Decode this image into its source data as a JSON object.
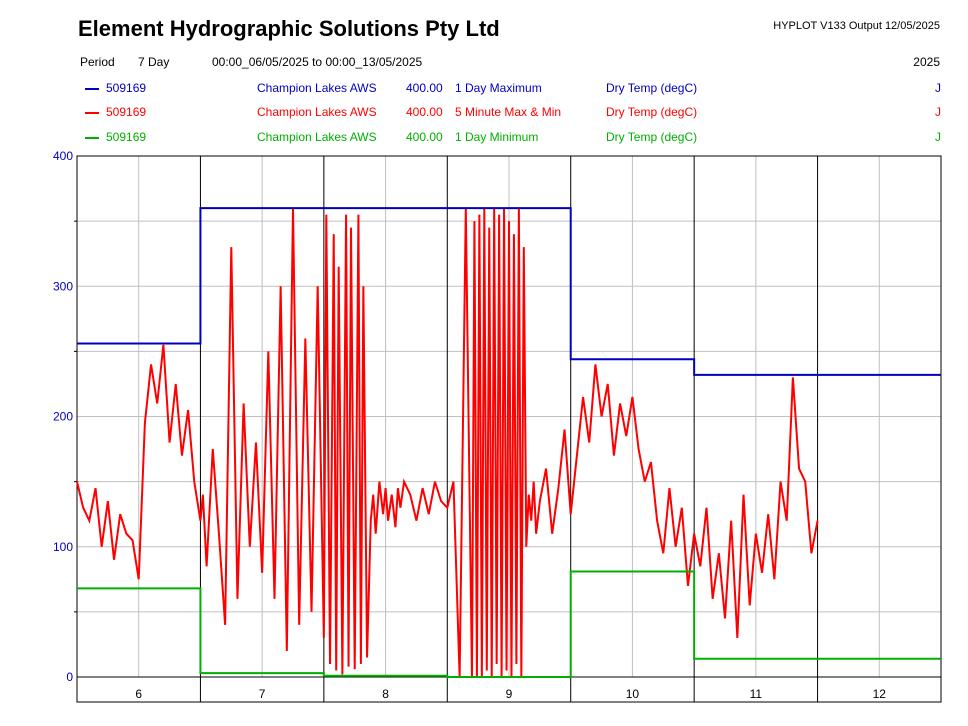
{
  "header": {
    "title": "Element Hydrographic Solutions Pty Ltd",
    "version": "HYPLOT V133  Output 12/05/2025",
    "period_label": "Period",
    "period_value": "7 Day",
    "date_range": "00:00_06/05/2025 to 00:00_13/05/2025",
    "year": "2025"
  },
  "legend": [
    {
      "site": "509169",
      "station": "Champion Lakes AWS",
      "value": "400.00",
      "stat": "1 Day Maximum",
      "variable": "Dry Temp (degC)",
      "flag": "J",
      "color": "#0000c0"
    },
    {
      "site": "509169",
      "station": "Champion Lakes AWS",
      "value": "400.00",
      "stat": "5 Minute Max & Min",
      "variable": "Dry Temp (degC)",
      "flag": "J",
      "color": "#ff0000"
    },
    {
      "site": "509169",
      "station": "Champion Lakes AWS",
      "value": "400.00",
      "stat": "1 Day Minimum",
      "variable": "Dry Temp (degC)",
      "flag": "J",
      "color": "#00b000"
    }
  ],
  "chart_data": {
    "type": "line",
    "ylim": [
      0,
      400
    ],
    "yticks": [
      0,
      100,
      200,
      300,
      400
    ],
    "xlim": [
      5.5,
      12.5
    ],
    "xticks": [
      6,
      7,
      8,
      9,
      10,
      11,
      12
    ],
    "grid": true,
    "series": [
      {
        "name": "1 Day Maximum",
        "color": "#0000c0",
        "step": true,
        "x": [
          5.5,
          6.5,
          7.5,
          8.5,
          9.5,
          10.5,
          11.5
        ],
        "y": [
          256,
          360,
          360,
          360,
          244,
          232,
          232
        ]
      },
      {
        "name": "1 Day Minimum",
        "color": "#00b000",
        "step": true,
        "x": [
          5.5,
          6.5,
          7.5,
          8.5,
          9.5,
          10.5,
          11.5
        ],
        "y": [
          68,
          3,
          1,
          0,
          81,
          14,
          14
        ]
      },
      {
        "name": "5 Minute Max & Min",
        "color": "#ff0000",
        "step": false,
        "x": [
          5.5,
          5.55,
          5.6,
          5.65,
          5.7,
          5.75,
          5.8,
          5.85,
          5.9,
          5.95,
          6.0,
          6.05,
          6.1,
          6.15,
          6.2,
          6.25,
          6.3,
          6.35,
          6.4,
          6.45,
          6.5,
          6.52,
          6.55,
          6.6,
          6.65,
          6.7,
          6.75,
          6.8,
          6.85,
          6.9,
          6.95,
          7.0,
          7.05,
          7.1,
          7.15,
          7.2,
          7.25,
          7.3,
          7.35,
          7.4,
          7.45,
          7.5,
          7.52,
          7.55,
          7.58,
          7.6,
          7.62,
          7.65,
          7.68,
          7.7,
          7.72,
          7.75,
          7.78,
          7.8,
          7.82,
          7.85,
          7.88,
          7.9,
          7.92,
          7.95,
          7.98,
          8.0,
          8.02,
          8.05,
          8.08,
          8.1,
          8.12,
          8.15,
          8.2,
          8.25,
          8.3,
          8.35,
          8.4,
          8.45,
          8.5,
          8.55,
          8.6,
          8.65,
          8.7,
          8.72,
          8.74,
          8.76,
          8.78,
          8.8,
          8.82,
          8.84,
          8.86,
          8.88,
          8.9,
          8.92,
          8.94,
          8.96,
          8.98,
          9.0,
          9.02,
          9.04,
          9.06,
          9.08,
          9.1,
          9.12,
          9.14,
          9.16,
          9.18,
          9.2,
          9.22,
          9.25,
          9.3,
          9.35,
          9.4,
          9.45,
          9.5,
          9.55,
          9.6,
          9.65,
          9.7,
          9.75,
          9.8,
          9.85,
          9.9,
          9.95,
          10.0,
          10.05,
          10.1,
          10.15,
          10.2,
          10.25,
          10.3,
          10.35,
          10.4,
          10.45,
          10.5,
          10.55,
          10.6,
          10.65,
          10.7,
          10.75,
          10.8,
          10.85,
          10.9,
          10.95,
          11.0,
          11.05,
          11.1,
          11.15,
          11.2,
          11.25,
          11.3,
          11.35,
          11.4,
          11.45,
          11.5
        ],
        "y": [
          150,
          130,
          120,
          145,
          100,
          135,
          90,
          125,
          110,
          105,
          75,
          195,
          240,
          210,
          255,
          180,
          225,
          170,
          205,
          150,
          120,
          140,
          85,
          175,
          110,
          40,
          330,
          60,
          210,
          100,
          180,
          80,
          250,
          60,
          300,
          20,
          360,
          40,
          260,
          50,
          300,
          30,
          355,
          10,
          340,
          5,
          315,
          2,
          355,
          8,
          345,
          6,
          355,
          10,
          300,
          15,
          120,
          140,
          110,
          150,
          125,
          145,
          120,
          140,
          115,
          145,
          130,
          150,
          140,
          120,
          145,
          125,
          150,
          135,
          130,
          150,
          0,
          360,
          0,
          350,
          0,
          355,
          0,
          360,
          5,
          345,
          0,
          360,
          10,
          355,
          0,
          360,
          5,
          350,
          0,
          340,
          10,
          360,
          0,
          330,
          100,
          140,
          120,
          150,
          110,
          135,
          160,
          110,
          145,
          190,
          125,
          170,
          215,
          180,
          240,
          200,
          225,
          170,
          210,
          185,
          215,
          175,
          150,
          165,
          120,
          95,
          145,
          100,
          130,
          70,
          110,
          85,
          130,
          60,
          95,
          45,
          120,
          30,
          140,
          55,
          110,
          80,
          125,
          75,
          150,
          120,
          230,
          160,
          150,
          95,
          120
        ]
      }
    ]
  }
}
